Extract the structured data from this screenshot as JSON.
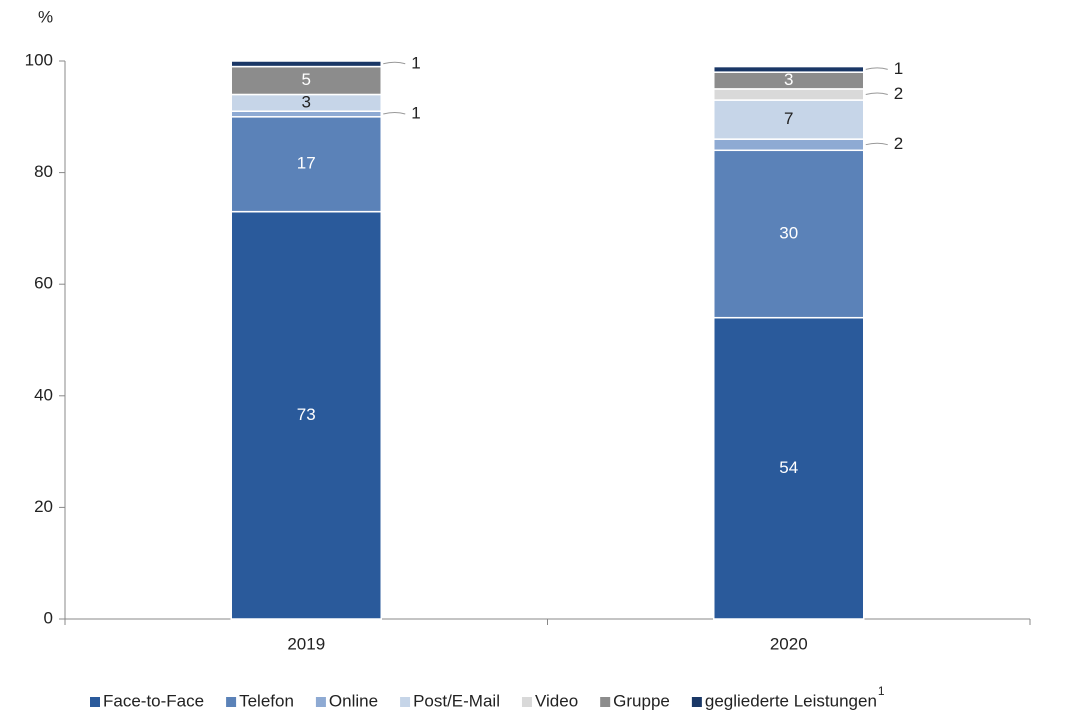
{
  "chart_data": {
    "type": "stacked_bar",
    "y_unit": "%",
    "categories": [
      "2019",
      "2020"
    ],
    "series": [
      {
        "name": "Face-to-Face",
        "color": "#2a5a9b",
        "values": [
          73,
          54
        ]
      },
      {
        "name": "Telefon",
        "color": "#5b82b8",
        "values": [
          17,
          30
        ]
      },
      {
        "name": "Online",
        "color": "#8eaad3",
        "values": [
          1,
          2
        ]
      },
      {
        "name": "Post/E-Mail",
        "color": "#c6d5e8",
        "values": [
          3,
          7
        ]
      },
      {
        "name": "Video",
        "color": "#d9d9d9",
        "values": [
          0,
          2
        ]
      },
      {
        "name": "Gruppe",
        "color": "#8c8c8c",
        "values": [
          5,
          3
        ]
      },
      {
        "name": "gegliederte Leistungen",
        "color": "#1a3766",
        "values": [
          1,
          1
        ]
      }
    ],
    "legend_footnote_marker": "1",
    "ylim": [
      0,
      100
    ],
    "yticks": [
      0,
      20,
      40,
      60,
      80,
      100
    ],
    "legend": "bottom"
  }
}
